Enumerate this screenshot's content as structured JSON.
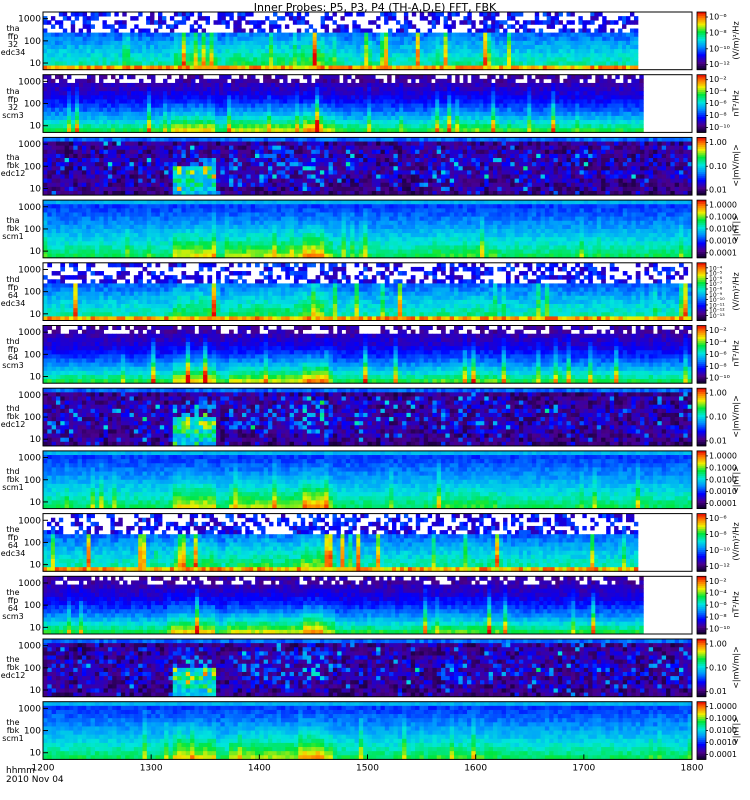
{
  "chart_data": {
    "type": "heatmap",
    "title": "Inner Probes: P5, P3, P4 (TH-A,D,E) FFT, FBK",
    "x_tick_labels": [
      "1200",
      "1300",
      "1400",
      "1500",
      "1600",
      "1700",
      "1800"
    ],
    "xlim": [
      1200,
      1800
    ],
    "x_label_line1": "hhmm",
    "x_label_line2": "2010 Nov 04",
    "panels": [
      {
        "name": "tha-ffp32-edc34",
        "probe": "tha",
        "label": [
          "tha",
          "ffp",
          "32",
          "edc34"
        ],
        "y_ticks": [
          "1000",
          "100",
          "10"
        ],
        "y_scale": "log",
        "colorbar_label": "(V/m)²/Hz",
        "colorbar_ticks": [
          "10⁻⁶",
          "10⁻⁸",
          "10⁻¹⁰",
          "10⁻¹²"
        ],
        "style": "efft",
        "data_end": 1750
      },
      {
        "name": "tha-ffp32-scm3",
        "probe": "tha",
        "label": [
          "tha",
          "ffp",
          "32",
          "scm3"
        ],
        "y_ticks": [
          "1000",
          "100",
          "10"
        ],
        "y_scale": "log",
        "colorbar_label": "nT²/Hz",
        "colorbar_ticks": [
          "10⁻²",
          "10⁻⁴",
          "10⁻⁶",
          "10⁻⁸",
          "10⁻¹⁰"
        ],
        "style": "bfft",
        "data_end": 1755
      },
      {
        "name": "tha-fbk-edc12",
        "probe": "tha",
        "label": [
          "tha",
          "fbk",
          "edc12"
        ],
        "y_ticks": [
          "1000",
          "100",
          "10"
        ],
        "y_scale": "log",
        "colorbar_label": "<|mV/m|>",
        "colorbar_ticks": [
          "1.00",
          "0.10",
          "0.01"
        ],
        "style": "efbk",
        "data_end": 1800
      },
      {
        "name": "tha-fbk-scm1",
        "probe": "tha",
        "label": [
          "tha",
          "fbk",
          "scm1"
        ],
        "y_ticks": [
          "1000",
          "100",
          "10"
        ],
        "y_scale": "log",
        "colorbar_label": "<|nT|>",
        "colorbar_ticks": [
          "1.0000",
          "0.1000",
          "0.0100",
          "0.0010",
          "0.0001"
        ],
        "style": "bfbk",
        "data_end": 1800
      },
      {
        "name": "thd-ffp64-edc34",
        "probe": "thd",
        "label": [
          "thd",
          "ffp",
          "64",
          "edc34"
        ],
        "y_ticks": [
          "1000",
          "100",
          "10"
        ],
        "y_scale": "log",
        "colorbar_label": "(V/m)²/Hz",
        "colorbar_ticks": [
          "10⁻⁴",
          "10⁻⁵",
          "10⁻⁶",
          "10⁻⁷",
          "10⁻⁸",
          "10⁻⁹",
          "10⁻¹⁰",
          "10⁻¹¹",
          "10⁻¹²",
          "10⁻¹³"
        ],
        "style": "efft",
        "data_end": 1800
      },
      {
        "name": "thd-ffp64-scm3",
        "probe": "thd",
        "label": [
          "thd",
          "ffp",
          "64",
          "scm3"
        ],
        "y_ticks": [
          "1000",
          "100",
          "10"
        ],
        "y_scale": "log",
        "colorbar_label": "nT²/Hz",
        "colorbar_ticks": [
          "10⁻²",
          "10⁻⁴",
          "10⁻⁶",
          "10⁻⁸",
          "10⁻¹⁰"
        ],
        "style": "bfft",
        "data_end": 1800
      },
      {
        "name": "thd-fbk-edc12",
        "probe": "thd",
        "label": [
          "thd",
          "fbk",
          "edc12"
        ],
        "y_ticks": [
          "1000",
          "100",
          "10"
        ],
        "y_scale": "log",
        "colorbar_label": "<|mV/m|>",
        "colorbar_ticks": [
          "1.00",
          "0.10",
          "0.01"
        ],
        "style": "efbk",
        "data_end": 1800
      },
      {
        "name": "thd-fbk-scm1",
        "probe": "thd",
        "label": [
          "thd",
          "fbk",
          "scm1"
        ],
        "y_ticks": [
          "1000",
          "100",
          "10"
        ],
        "y_scale": "log",
        "colorbar_label": "<|nT|>",
        "colorbar_ticks": [
          "1.0000",
          "0.1000",
          "0.0100",
          "0.0010",
          "0.0001"
        ],
        "style": "bfbk",
        "data_end": 1800
      },
      {
        "name": "the-ffp64-edc34",
        "probe": "the",
        "label": [
          "the",
          "ffp",
          "64",
          "edc34"
        ],
        "y_ticks": [
          "1000",
          "100",
          "10"
        ],
        "y_scale": "log",
        "colorbar_label": "(V/m)²/Hz",
        "colorbar_ticks": [
          "10⁻⁶",
          "10⁻⁸",
          "10⁻¹⁰",
          "10⁻¹²"
        ],
        "style": "efft",
        "data_end": 1750
      },
      {
        "name": "the-ffp64-scm3",
        "probe": "the",
        "label": [
          "the",
          "ffp",
          "64",
          "scm3"
        ],
        "y_ticks": [
          "1000",
          "100",
          "10"
        ],
        "y_scale": "log",
        "colorbar_label": "nT²/Hz",
        "colorbar_ticks": [
          "10⁻²",
          "10⁻⁴",
          "10⁻⁶",
          "10⁻⁸",
          "10⁻¹⁰"
        ],
        "style": "bfft",
        "data_end": 1755
      },
      {
        "name": "the-fbk-edc12",
        "probe": "the",
        "label": [
          "the",
          "fbk",
          "edc12"
        ],
        "y_ticks": [
          "1000",
          "100",
          "10"
        ],
        "y_scale": "log",
        "colorbar_label": "<|mV/m|>",
        "colorbar_ticks": [
          "1.00",
          "0.10",
          "0.01"
        ],
        "style": "efbk",
        "data_end": 1800
      },
      {
        "name": "the-fbk-scm1",
        "probe": "the",
        "label": [
          "the",
          "fbk",
          "scm1"
        ],
        "y_ticks": [
          "1000",
          "100",
          "10"
        ],
        "y_scale": "log",
        "colorbar_label": "<|nT|>",
        "colorbar_ticks": [
          "1.0000",
          "0.1000",
          "0.0100",
          "0.0010",
          "0.0001"
        ],
        "style": "bfbk",
        "data_end": 1800
      }
    ]
  }
}
